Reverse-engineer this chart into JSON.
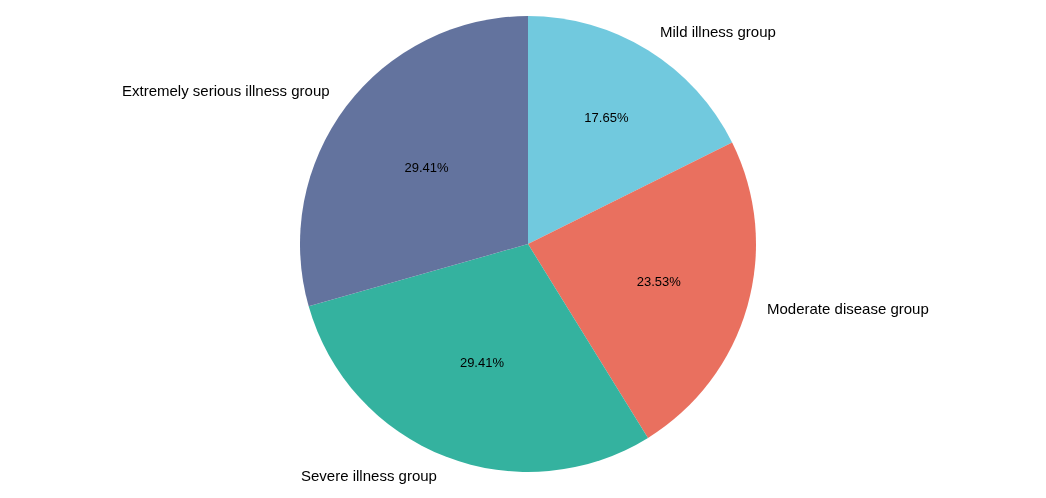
{
  "chart_data": {
    "type": "pie",
    "categories": [
      "Mild illness group",
      "Moderate disease group",
      "Severe illness group",
      "Extremely serious illness group"
    ],
    "values": [
      17.65,
      23.53,
      29.41,
      29.41
    ],
    "colors": [
      "#71c9de",
      "#e9705f",
      "#34b29f",
      "#63739e"
    ],
    "value_labels": [
      "17.65%",
      "23.53%",
      "29.41%",
      "29.41%"
    ],
    "legend": false
  }
}
